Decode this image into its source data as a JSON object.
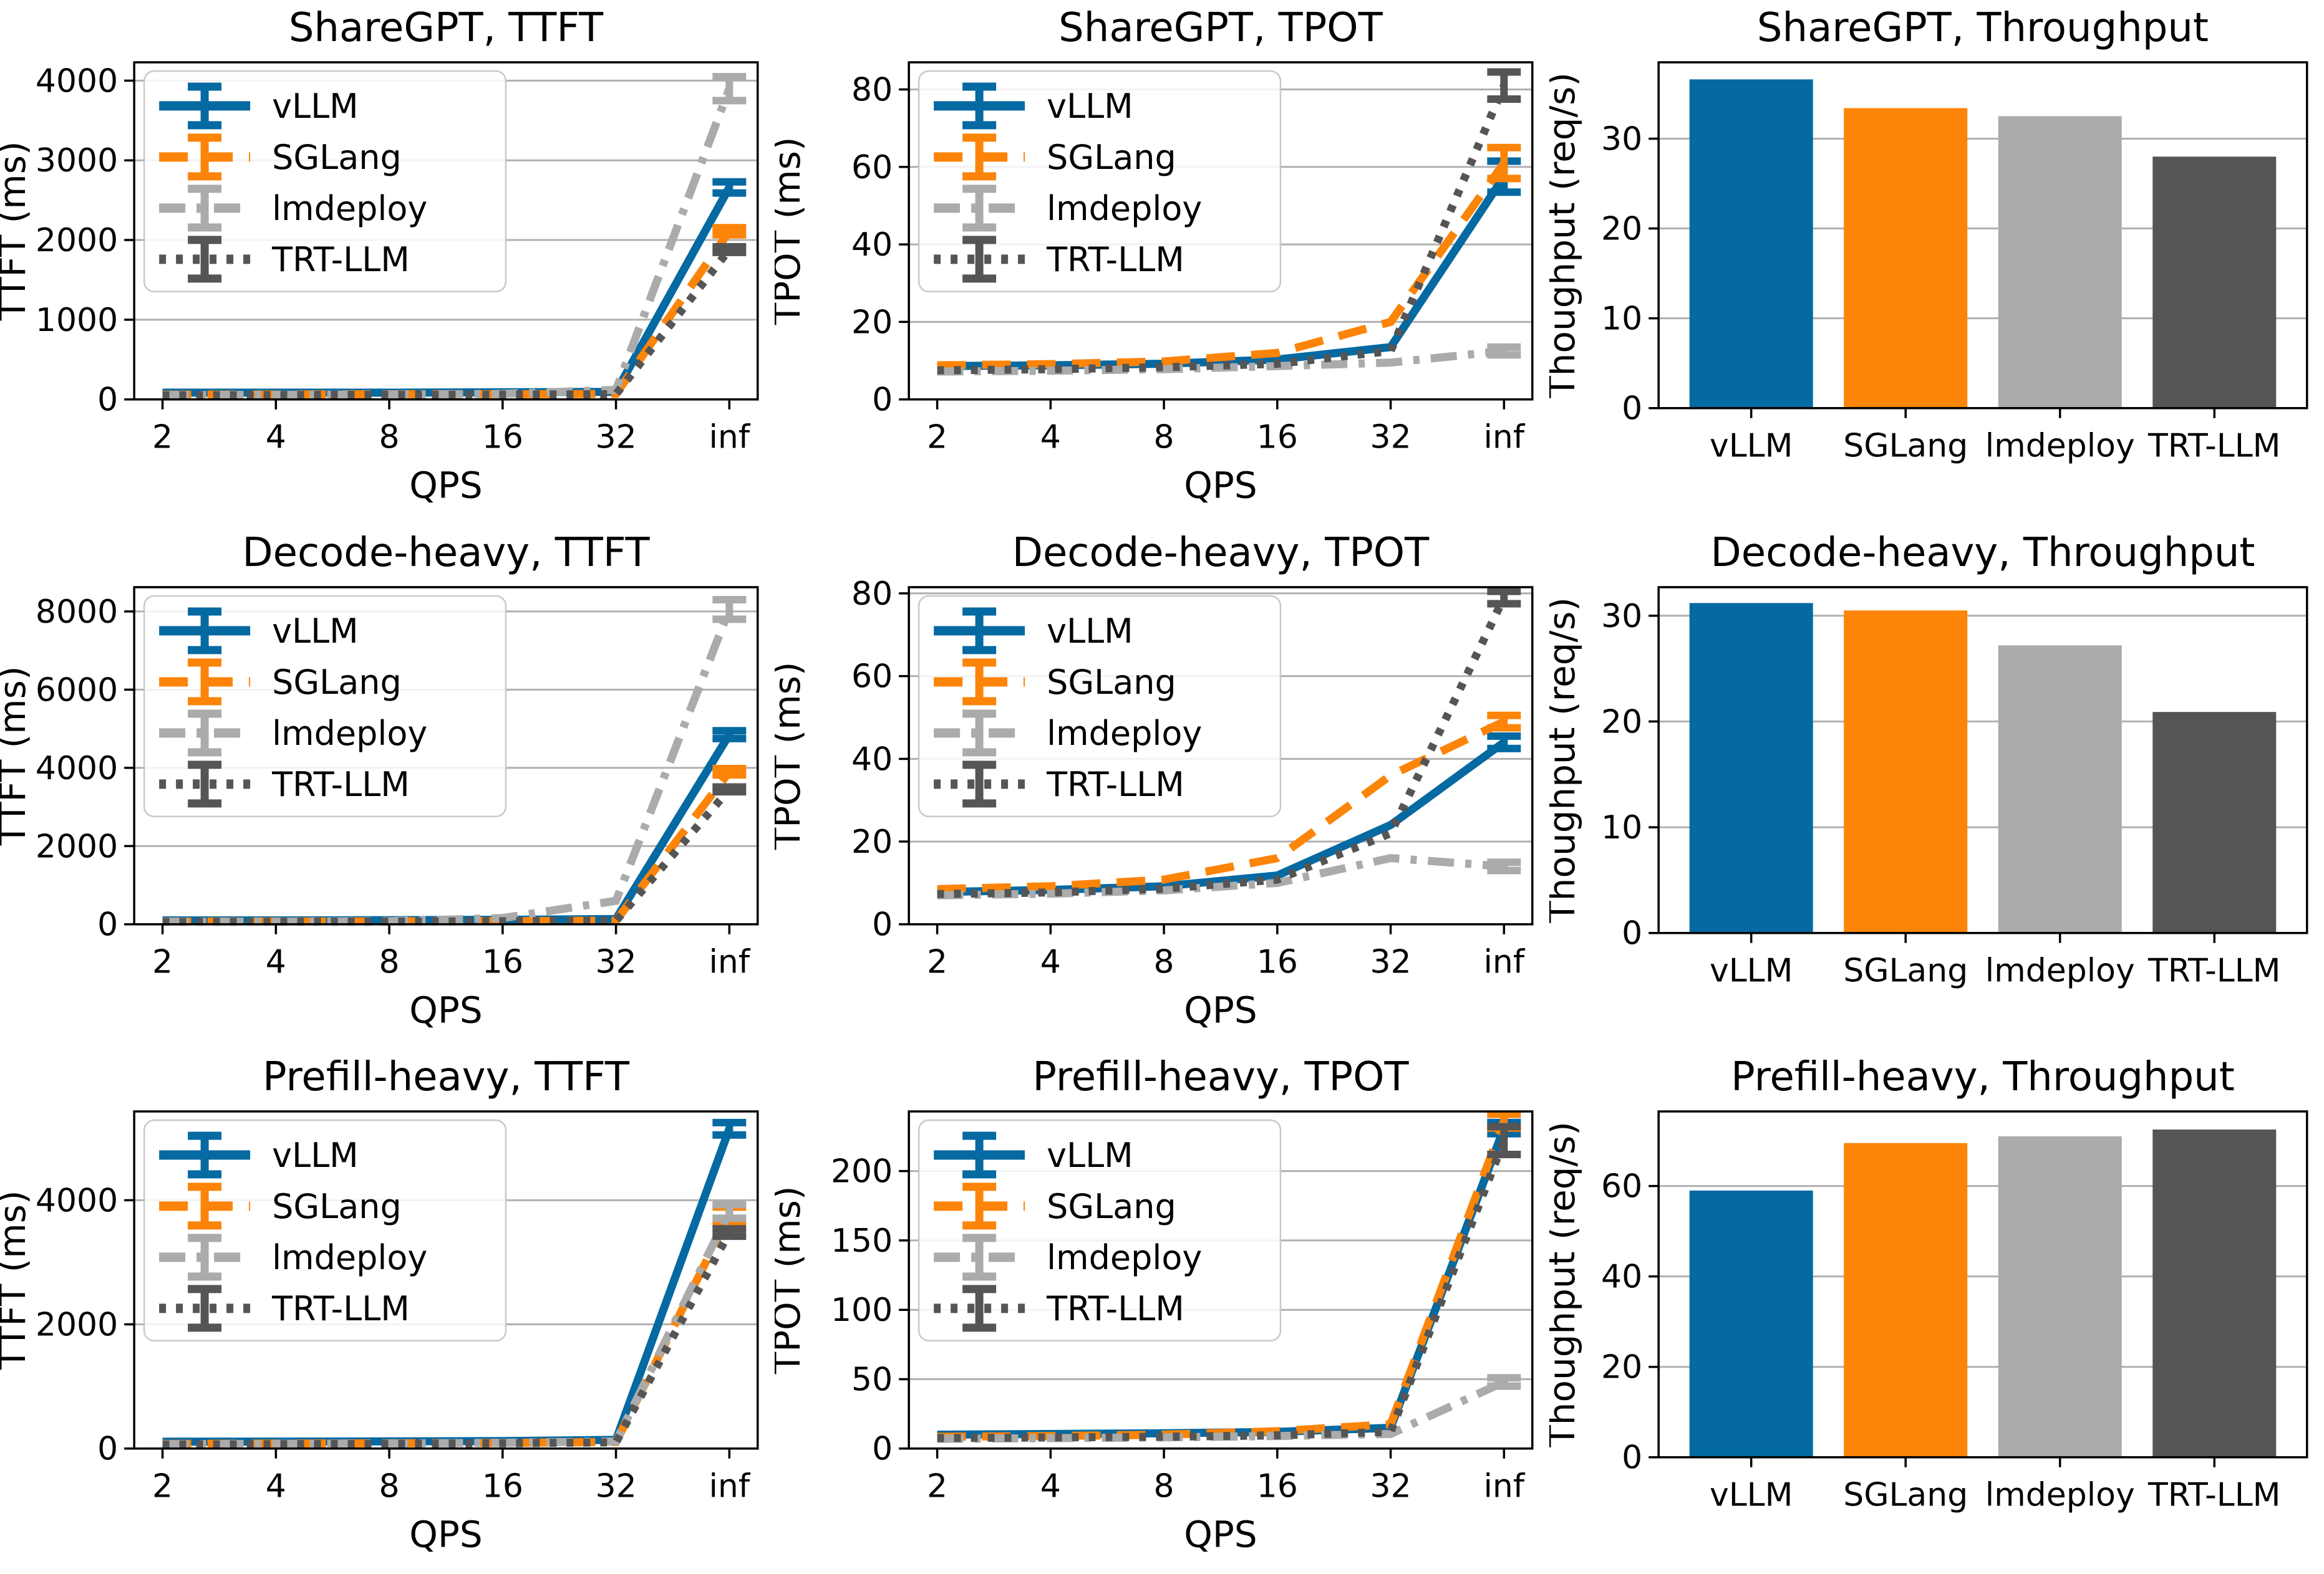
{
  "figure": {
    "rows": [
      "ShareGPT",
      "Decode-heavy",
      "Prefill-heavy"
    ],
    "columns": [
      "TTFT",
      "TPOT",
      "Throughput"
    ],
    "background": "#ffffff"
  },
  "colors": {
    "vLLM": "#0569a2",
    "SGLang": "#fc8408",
    "lmdeploy": "#ababab",
    "TRT-LLM": "#555555",
    "grid_line": "#b0b0b0",
    "spine": "#000000",
    "legend_border": "#c8c8c8"
  },
  "line_styles": {
    "vLLM": "solid",
    "SGLang": "dashed",
    "lmdeploy": "dashdot",
    "TRT-LLM": "dotted"
  },
  "legend_labels": [
    "vLLM",
    "SGLang",
    "lmdeploy",
    "TRT-LLM"
  ],
  "chart_data": [
    {
      "id": "sharegpt-ttft",
      "type": "line",
      "title": "ShareGPT, TTFT",
      "xlabel": "QPS",
      "ylabel": "TTFT (ms)",
      "x_ticklabels": [
        "2",
        "4",
        "8",
        "16",
        "32",
        "inf"
      ],
      "yticks": [
        0,
        1000,
        2000,
        3000,
        4000
      ],
      "ylim": [
        0,
        4230
      ],
      "grid": "horizontal",
      "legend": true,
      "legend_position": "upper-left",
      "series": [
        {
          "name": "vLLM",
          "values": [
            85,
            85,
            85,
            90,
            95,
            2660
          ],
          "err_inf": 70
        },
        {
          "name": "SGLang",
          "values": [
            60,
            62,
            65,
            65,
            70,
            2110
          ],
          "err_inf": 45
        },
        {
          "name": "lmdeploy",
          "values": [
            55,
            58,
            62,
            70,
            120,
            3900
          ],
          "err_inf": 150
        },
        {
          "name": "TRT-LLM",
          "values": [
            52,
            55,
            58,
            60,
            65,
            1880
          ],
          "err_inf": 35
        }
      ]
    },
    {
      "id": "sharegpt-tpot",
      "type": "line",
      "title": "ShareGPT, TPOT",
      "xlabel": "QPS",
      "ylabel": "TPOT (ms)",
      "x_ticklabels": [
        "2",
        "4",
        "8",
        "16",
        "32",
        "inf"
      ],
      "yticks": [
        0,
        20,
        40,
        60,
        80
      ],
      "ylim": [
        0,
        87
      ],
      "grid": "horizontal",
      "legend": true,
      "legend_position": "upper-left",
      "series": [
        {
          "name": "vLLM",
          "values": [
            8.6,
            8.8,
            9.2,
            10.3,
            13.5,
            57.5
          ],
          "err_inf": 4
        },
        {
          "name": "SGLang",
          "values": [
            8.8,
            9.1,
            9.8,
            12,
            20,
            61
          ],
          "err_inf": 4
        },
        {
          "name": "lmdeploy",
          "values": [
            7.2,
            7.4,
            7.8,
            8.6,
            9.5,
            12.5
          ],
          "err_inf": 1
        },
        {
          "name": "TRT-LLM",
          "values": [
            7.5,
            7.8,
            8.3,
            9.2,
            12.5,
            81
          ],
          "err_inf": 3.5
        }
      ]
    },
    {
      "id": "sharegpt-throughput",
      "type": "bar",
      "title": "ShareGPT, Throughput",
      "xlabel": "",
      "ylabel": "Thoughput (req/s)",
      "categories": [
        "vLLM",
        "SGLang",
        "lmdeploy",
        "TRT-LLM"
      ],
      "values": [
        36.6,
        33.4,
        32.5,
        28.0
      ],
      "yticks": [
        0,
        10,
        20,
        30
      ],
      "ylim": [
        0,
        38.5
      ],
      "grid": "horizontal"
    },
    {
      "id": "decode-heavy-ttft",
      "type": "line",
      "title": "Decode-heavy, TTFT",
      "xlabel": "QPS",
      "ylabel": "TTFT (ms)",
      "x_ticklabels": [
        "2",
        "4",
        "8",
        "16",
        "32",
        "inf"
      ],
      "yticks": [
        0,
        2000,
        4000,
        6000,
        8000
      ],
      "ylim": [
        0,
        8620
      ],
      "grid": "horizontal",
      "legend": true,
      "legend_position": "upper-left",
      "series": [
        {
          "name": "vLLM",
          "values": [
            100,
            100,
            105,
            115,
            135,
            4850
          ],
          "err_inf": 100
        },
        {
          "name": "SGLang",
          "values": [
            70,
            72,
            75,
            80,
            95,
            3900
          ],
          "err_inf": 80
        },
        {
          "name": "lmdeploy",
          "values": [
            65,
            70,
            80,
            160,
            600,
            8050
          ],
          "err_inf": 250
        },
        {
          "name": "TRT-LLM",
          "values": [
            60,
            63,
            68,
            75,
            90,
            3450
          ],
          "err_inf": 60
        }
      ]
    },
    {
      "id": "decode-heavy-tpot",
      "type": "line",
      "title": "Decode-heavy, TPOT",
      "xlabel": "QPS",
      "ylabel": "TPOT (ms)",
      "x_ticklabels": [
        "2",
        "4",
        "8",
        "16",
        "32",
        "inf"
      ],
      "yticks": [
        0,
        20,
        40,
        60,
        80
      ],
      "ylim": [
        0,
        81.5
      ],
      "grid": "horizontal",
      "legend": true,
      "legend_position": "upper-left",
      "series": [
        {
          "name": "vLLM",
          "values": [
            7.8,
            8.3,
            9.2,
            11.8,
            24,
            44
          ],
          "err_inf": 1.5
        },
        {
          "name": "SGLang",
          "values": [
            8.5,
            9.2,
            10.8,
            16,
            36,
            49
          ],
          "err_inf": 1.5
        },
        {
          "name": "lmdeploy",
          "values": [
            7,
            7.4,
            8.2,
            10,
            16,
            14
          ],
          "err_inf": 1
        },
        {
          "name": "TRT-LLM",
          "values": [
            7.3,
            7.7,
            8.6,
            10.8,
            22,
            79
          ],
          "err_inf": 1.5
        }
      ]
    },
    {
      "id": "decode-heavy-throughput",
      "type": "bar",
      "title": "Decode-heavy, Throughput",
      "xlabel": "",
      "ylabel": "Thoughput (req/s)",
      "categories": [
        "vLLM",
        "SGLang",
        "lmdeploy",
        "TRT-LLM"
      ],
      "values": [
        31.2,
        30.5,
        27.2,
        20.9
      ],
      "yticks": [
        0,
        10,
        20,
        30
      ],
      "ylim": [
        0,
        32.7
      ],
      "grid": "horizontal"
    },
    {
      "id": "prefill-heavy-ttft",
      "type": "line",
      "title": "Prefill-heavy, TTFT",
      "xlabel": "QPS",
      "ylabel": "TTFT (ms)",
      "x_ticklabels": [
        "2",
        "4",
        "8",
        "16",
        "32",
        "inf"
      ],
      "yticks": [
        0,
        2000,
        4000
      ],
      "ylim": [
        0,
        5430
      ],
      "grid": "horizontal",
      "legend": true,
      "legend_position": "upper-left",
      "series": [
        {
          "name": "vLLM",
          "values": [
            110,
            112,
            115,
            120,
            140,
            5150
          ],
          "err_inf": 100
        },
        {
          "name": "SGLang",
          "values": [
            75,
            80,
            85,
            90,
            105,
            3760
          ],
          "err_inf": 130
        },
        {
          "name": "lmdeploy",
          "values": [
            70,
            76,
            82,
            92,
            115,
            3820
          ],
          "err_inf": 110
        },
        {
          "name": "TRT-LLM",
          "values": [
            65,
            70,
            76,
            85,
            100,
            3480
          ],
          "err_inf": 60
        }
      ]
    },
    {
      "id": "prefill-heavy-tpot",
      "type": "line",
      "title": "Prefill-heavy, TPOT",
      "xlabel": "QPS",
      "ylabel": "TPOT (ms)",
      "x_ticklabels": [
        "2",
        "4",
        "8",
        "16",
        "32",
        "inf"
      ],
      "yticks": [
        0,
        50,
        100,
        150,
        200
      ],
      "ylim": [
        0,
        243
      ],
      "grid": "horizontal",
      "legend": true,
      "legend_position": "upper-left",
      "series": [
        {
          "name": "vLLM",
          "values": [
            10,
            10.5,
            11,
            12,
            15,
            231
          ],
          "err_inf": 4
        },
        {
          "name": "SGLang",
          "values": [
            8.5,
            9,
            10,
            12.5,
            17.5,
            236
          ],
          "err_inf": 5
        },
        {
          "name": "lmdeploy",
          "values": [
            7,
            7.5,
            8,
            9,
            10.5,
            48
          ],
          "err_inf": 3
        },
        {
          "name": "TRT-LLM",
          "values": [
            7.5,
            8,
            8.5,
            9.5,
            12,
            222
          ],
          "err_inf": 10
        }
      ]
    },
    {
      "id": "prefill-heavy-throughput",
      "type": "bar",
      "title": "Prefill-heavy, Throughput",
      "xlabel": "",
      "ylabel": "Thoughput (req/s)",
      "categories": [
        "vLLM",
        "SGLang",
        "lmdeploy",
        "TRT-LLM"
      ],
      "values": [
        59,
        69.5,
        71,
        72.5
      ],
      "yticks": [
        0,
        20,
        40,
        60
      ],
      "ylim": [
        0,
        76.5
      ],
      "grid": "horizontal"
    }
  ]
}
